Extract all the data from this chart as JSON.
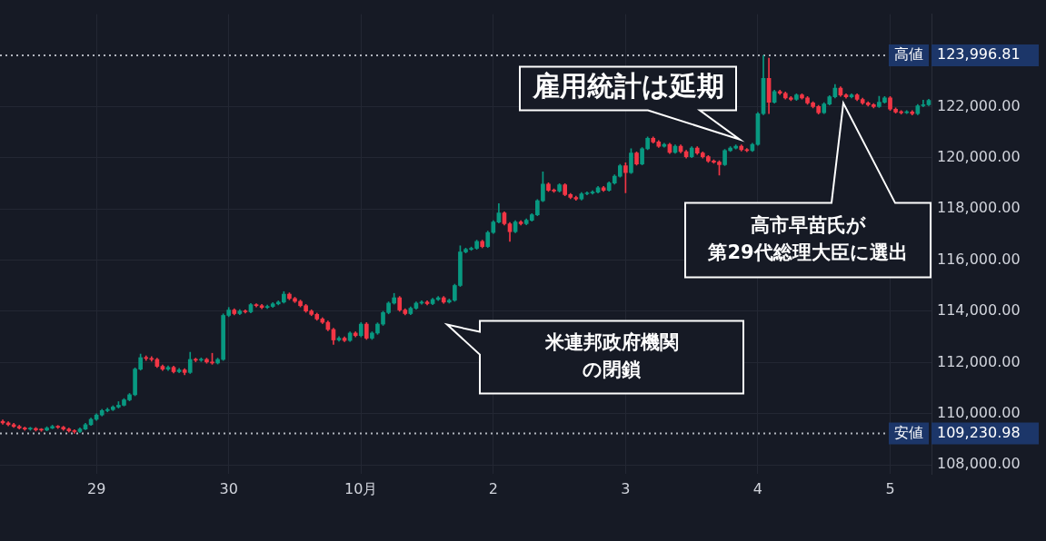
{
  "chart_data": {
    "type": "candlestick",
    "categories": [
      null,
      null,
      null,
      null,
      null,
      null,
      null,
      null,
      null,
      null,
      null,
      null,
      null,
      null,
      null,
      null,
      null,
      "29",
      null,
      null,
      null,
      null,
      null,
      null,
      null,
      null,
      null,
      null,
      null,
      null,
      null,
      null,
      null,
      null,
      null,
      null,
      null,
      null,
      null,
      null,
      null,
      "30",
      null,
      null,
      null,
      null,
      null,
      null,
      null,
      null,
      null,
      null,
      null,
      null,
      null,
      null,
      null,
      null,
      null,
      null,
      null,
      null,
      null,
      null,
      null,
      "10月",
      null,
      null,
      null,
      null,
      null,
      null,
      null,
      null,
      null,
      null,
      null,
      null,
      null,
      null,
      null,
      null,
      null,
      null,
      null,
      null,
      null,
      null,
      null,
      "2",
      null,
      null,
      null,
      null,
      null,
      null,
      null,
      null,
      null,
      null,
      null,
      null,
      null,
      null,
      null,
      null,
      null,
      null,
      null,
      null,
      null,
      null,
      null,
      "3",
      null,
      null,
      null,
      null,
      null,
      null,
      null,
      null,
      null,
      null,
      null,
      null,
      null,
      null,
      null,
      null,
      null,
      null,
      null,
      null,
      null,
      null,
      null,
      "4",
      null,
      null,
      null,
      null,
      null,
      null,
      null,
      null,
      null,
      null,
      null,
      null,
      null,
      null,
      null,
      null,
      null,
      null,
      null,
      null,
      null,
      null,
      null,
      "5",
      null,
      null,
      null,
      null,
      null,
      null,
      null
    ],
    "ohlc": [
      [
        109700,
        109760,
        109590,
        109640
      ],
      [
        109640,
        109690,
        109520,
        109570
      ],
      [
        109570,
        109620,
        109460,
        109500
      ],
      [
        109500,
        109550,
        109400,
        109440
      ],
      [
        109440,
        109480,
        109350,
        109400
      ],
      [
        109400,
        109470,
        109350,
        109420
      ],
      [
        109420,
        109460,
        109320,
        109370
      ],
      [
        109370,
        109420,
        109310,
        109360
      ],
      [
        109360,
        109490,
        109330,
        109440
      ],
      [
        109440,
        109550,
        109410,
        109500
      ],
      [
        109500,
        109540,
        109420,
        109470
      ],
      [
        109470,
        109510,
        109350,
        109400
      ],
      [
        109400,
        109440,
        109280,
        109330
      ],
      [
        109330,
        109380,
        109230.98,
        109300
      ],
      [
        109300,
        109450,
        109260,
        109400
      ],
      [
        109400,
        109620,
        109370,
        109570
      ],
      [
        109570,
        109830,
        109540,
        109780
      ],
      [
        109780,
        110000,
        109740,
        109950
      ],
      [
        109950,
        110170,
        109910,
        110120
      ],
      [
        110120,
        110220,
        110070,
        110160
      ],
      [
        110160,
        110310,
        110120,
        110260
      ],
      [
        110260,
        110470,
        110220,
        110330
      ],
      [
        110330,
        110590,
        110300,
        110540
      ],
      [
        110540,
        110790,
        110500,
        110740
      ],
      [
        110740,
        111790,
        110700,
        111740
      ],
      [
        111740,
        112330,
        111700,
        112190
      ],
      [
        112190,
        112260,
        112080,
        112160
      ],
      [
        112160,
        112230,
        112050,
        112120
      ],
      [
        112120,
        112170,
        111800,
        111850
      ],
      [
        111850,
        111900,
        111690,
        111740
      ],
      [
        111740,
        111870,
        111690,
        111810
      ],
      [
        111810,
        111860,
        111590,
        111640
      ],
      [
        111640,
        111770,
        111600,
        111710
      ],
      [
        111710,
        111760,
        111520,
        111610
      ],
      [
        111610,
        112400,
        111570,
        112120
      ],
      [
        112120,
        112170,
        112030,
        112090
      ],
      [
        112090,
        112180,
        112040,
        112120
      ],
      [
        112120,
        112170,
        111970,
        112020
      ],
      [
        112020,
        112360,
        111930,
        111980
      ],
      [
        111980,
        112170,
        111940,
        112120
      ],
      [
        112120,
        113900,
        112080,
        113840
      ],
      [
        113840,
        114150,
        113790,
        114050
      ],
      [
        114050,
        114100,
        113860,
        113910
      ],
      [
        113910,
        114070,
        113870,
        114010
      ],
      [
        114010,
        114060,
        113930,
        113980
      ],
      [
        113980,
        114310,
        113940,
        114260
      ],
      [
        114260,
        114300,
        114170,
        114220
      ],
      [
        114220,
        114270,
        114100,
        114150
      ],
      [
        114150,
        114240,
        114110,
        114190
      ],
      [
        114190,
        114340,
        114150,
        114290
      ],
      [
        114290,
        114410,
        114250,
        114360
      ],
      [
        114360,
        114770,
        114320,
        114670
      ],
      [
        114670,
        114720,
        114450,
        114500
      ],
      [
        114500,
        114550,
        114340,
        114390
      ],
      [
        114390,
        114440,
        114170,
        114220
      ],
      [
        114220,
        114270,
        113960,
        114010
      ],
      [
        114010,
        114060,
        113830,
        113880
      ],
      [
        113880,
        113930,
        113650,
        113700
      ],
      [
        113700,
        113750,
        113520,
        113570
      ],
      [
        113570,
        113620,
        113240,
        113290
      ],
      [
        113290,
        113340,
        112710,
        112880
      ],
      [
        112880,
        113010,
        112830,
        112950
      ],
      [
        112950,
        113000,
        112810,
        112860
      ],
      [
        112860,
        113200,
        112820,
        113150
      ],
      [
        113150,
        113200,
        113000,
        113050
      ],
      [
        113050,
        113560,
        113000,
        113500
      ],
      [
        113500,
        113560,
        112900,
        112950
      ],
      [
        112950,
        113200,
        112900,
        113150
      ],
      [
        113150,
        113550,
        113100,
        113500
      ],
      [
        113500,
        114000,
        113450,
        113950
      ],
      [
        113950,
        114370,
        113900,
        114320
      ],
      [
        114320,
        114700,
        114280,
        114530
      ],
      [
        114530,
        114580,
        114000,
        114050
      ],
      [
        114050,
        114100,
        113860,
        113910
      ],
      [
        113910,
        114170,
        113870,
        114120
      ],
      [
        114120,
        114370,
        114080,
        114320
      ],
      [
        114320,
        114410,
        114280,
        114360
      ],
      [
        114360,
        114410,
        114250,
        114300
      ],
      [
        114300,
        114510,
        114260,
        114460
      ],
      [
        114460,
        114580,
        114420,
        114530
      ],
      [
        114530,
        114580,
        114310,
        114360
      ],
      [
        114360,
        114480,
        114320,
        114430
      ],
      [
        114430,
        115060,
        114390,
        115010
      ],
      [
        115010,
        116560,
        114970,
        116320
      ],
      [
        116320,
        116470,
        116280,
        116420
      ],
      [
        116420,
        116510,
        116380,
        116460
      ],
      [
        116460,
        116780,
        116420,
        116730
      ],
      [
        116730,
        116780,
        116480,
        116530
      ],
      [
        116530,
        117130,
        116490,
        117080
      ],
      [
        117080,
        117540,
        117040,
        117490
      ],
      [
        117490,
        118210,
        117450,
        117840
      ],
      [
        117840,
        117890,
        117370,
        117420
      ],
      [
        117420,
        117470,
        116730,
        117110
      ],
      [
        117110,
        117540,
        117070,
        117490
      ],
      [
        117490,
        117540,
        117370,
        117420
      ],
      [
        117420,
        117610,
        117380,
        117560
      ],
      [
        117560,
        117820,
        117520,
        117770
      ],
      [
        117770,
        118370,
        117730,
        118320
      ],
      [
        118320,
        119450,
        118280,
        118970
      ],
      [
        118970,
        119020,
        118680,
        118730
      ],
      [
        118730,
        118780,
        118650,
        118700
      ],
      [
        118700,
        118990,
        118660,
        118940
      ],
      [
        118940,
        118990,
        118510,
        118560
      ],
      [
        118560,
        118610,
        118400,
        118450
      ],
      [
        118450,
        118500,
        118340,
        118390
      ],
      [
        118390,
        118640,
        118350,
        118590
      ],
      [
        118590,
        118670,
        118550,
        118620
      ],
      [
        118620,
        118710,
        118580,
        118660
      ],
      [
        118660,
        118880,
        118620,
        118830
      ],
      [
        118830,
        118880,
        118680,
        118730
      ],
      [
        118730,
        119060,
        118690,
        119010
      ],
      [
        119010,
        119330,
        118970,
        119280
      ],
      [
        119280,
        119740,
        119240,
        119690
      ],
      [
        119690,
        119800,
        118630,
        119420
      ],
      [
        119420,
        120350,
        119380,
        120180
      ],
      [
        120180,
        120230,
        119710,
        119760
      ],
      [
        119760,
        120400,
        119720,
        120350
      ],
      [
        120350,
        120810,
        120310,
        120760
      ],
      [
        120760,
        120810,
        120570,
        120620
      ],
      [
        120620,
        120670,
        120400,
        120450
      ],
      [
        120450,
        120570,
        120410,
        120520
      ],
      [
        120520,
        120570,
        120160,
        120210
      ],
      [
        120210,
        120500,
        120170,
        120450
      ],
      [
        120450,
        120500,
        120190,
        120240
      ],
      [
        120240,
        120290,
        119990,
        120040
      ],
      [
        120040,
        120430,
        120000,
        120380
      ],
      [
        120380,
        120430,
        120130,
        120180
      ],
      [
        120180,
        120230,
        119990,
        120040
      ],
      [
        120040,
        120090,
        119820,
        119870
      ],
      [
        119870,
        119920,
        119780,
        119830
      ],
      [
        119830,
        119880,
        119320,
        119730
      ],
      [
        119730,
        120330,
        119690,
        120280
      ],
      [
        120280,
        120430,
        120240,
        120380
      ],
      [
        120380,
        120500,
        120340,
        120450
      ],
      [
        120450,
        120500,
        120260,
        120310
      ],
      [
        120310,
        120360,
        120230,
        120280
      ],
      [
        120280,
        120570,
        120240,
        120520
      ],
      [
        120520,
        121770,
        120480,
        121720
      ],
      [
        121720,
        123996.81,
        121680,
        123100
      ],
      [
        123100,
        123890,
        121720,
        122170
      ],
      [
        122170,
        122640,
        122130,
        122590
      ],
      [
        122590,
        122640,
        122470,
        122520
      ],
      [
        122520,
        122570,
        122290,
        122340
      ],
      [
        122340,
        122390,
        122230,
        122280
      ],
      [
        122280,
        122500,
        122240,
        122450
      ],
      [
        122450,
        122500,
        122290,
        122340
      ],
      [
        122340,
        122390,
        122090,
        122140
      ],
      [
        122140,
        122190,
        121950,
        122000
      ],
      [
        122000,
        122050,
        121710,
        121760
      ],
      [
        121760,
        122150,
        121720,
        122100
      ],
      [
        122100,
        122430,
        122060,
        122380
      ],
      [
        122380,
        122860,
        122340,
        122720
      ],
      [
        122720,
        122770,
        122400,
        122450
      ],
      [
        122450,
        122500,
        122330,
        122380
      ],
      [
        122380,
        122500,
        122340,
        122450
      ],
      [
        122450,
        122500,
        122230,
        122280
      ],
      [
        122280,
        122330,
        122090,
        122140
      ],
      [
        122140,
        122190,
        122020,
        122070
      ],
      [
        122070,
        122120,
        121950,
        122000
      ],
      [
        122000,
        122400,
        121960,
        122170
      ],
      [
        122170,
        122390,
        122130,
        122340
      ],
      [
        122340,
        122390,
        121850,
        121900
      ],
      [
        121900,
        121950,
        121740,
        121790
      ],
      [
        121790,
        121840,
        121710,
        121760
      ],
      [
        121760,
        121840,
        121720,
        121790
      ],
      [
        121790,
        121840,
        121670,
        121720
      ],
      [
        121720,
        122080,
        121680,
        122030
      ],
      [
        122030,
        122250,
        121990,
        122070
      ],
      [
        122070,
        122290,
        122030,
        122240
      ]
    ],
    "colors": [
      "#f23645",
      "#f23645",
      "#f23645",
      "#f23645",
      "#f23645",
      "#089981",
      "#f23645",
      "#f23645",
      "#089981",
      "#089981",
      "#f23645",
      "#f23645",
      "#f23645",
      "#f23645",
      "#089981",
      "#089981",
      "#089981",
      "#089981",
      "#089981",
      "#089981",
      "#089981",
      "#089981",
      "#089981",
      "#089981",
      "#089981",
      "#089981",
      "#f23645",
      "#f23645",
      "#f23645",
      "#f23645",
      "#089981",
      "#f23645",
      "#089981",
      "#f23645",
      "#089981",
      "#f23645",
      "#089981",
      "#f23645",
      "#f23645",
      "#089981",
      "#089981",
      "#089981",
      "#f23645",
      "#089981",
      "#f23645",
      "#089981",
      "#f23645",
      "#f23645",
      "#089981",
      "#089981",
      "#089981",
      "#089981",
      "#f23645",
      "#f23645",
      "#f23645",
      "#f23645",
      "#f23645",
      "#f23645",
      "#f23645",
      "#f23645",
      "#f23645",
      "#089981",
      "#f23645",
      "#089981",
      "#f23645",
      "#089981",
      "#f23645",
      "#089981",
      "#089981",
      "#089981",
      "#089981",
      "#089981",
      "#f23645",
      "#f23645",
      "#089981",
      "#089981",
      "#089981",
      "#f23645",
      "#089981",
      "#089981",
      "#f23645",
      "#089981",
      "#089981",
      "#089981",
      "#089981",
      "#089981",
      "#089981",
      "#f23645",
      "#089981",
      "#089981",
      "#089981",
      "#f23645",
      "#f23645",
      "#089981",
      "#f23645",
      "#089981",
      "#089981",
      "#089981",
      "#089981",
      "#f23645",
      "#f23645",
      "#089981",
      "#f23645",
      "#f23645",
      "#f23645",
      "#089981",
      "#089981",
      "#089981",
      "#089981",
      "#f23645",
      "#089981",
      "#089981",
      "#089981",
      "#f23645",
      "#089981",
      "#f23645",
      "#089981",
      "#089981",
      "#f23645",
      "#f23645",
      "#089981",
      "#f23645",
      "#089981",
      "#f23645",
      "#f23645",
      "#089981",
      "#f23645",
      "#f23645",
      "#f23645",
      "#f23645",
      "#f23645",
      "#089981",
      "#089981",
      "#089981",
      "#f23645",
      "#f23645",
      "#089981",
      "#089981",
      "#089981",
      "#f23645",
      "#089981",
      "#f23645",
      "#f23645",
      "#f23645",
      "#089981",
      "#f23645",
      "#f23645",
      "#f23645",
      "#f23645",
      "#089981",
      "#089981",
      "#089981",
      "#f23645",
      "#f23645",
      "#089981",
      "#f23645",
      "#f23645",
      "#f23645",
      "#f23645",
      "#089981",
      "#089981",
      "#f23645",
      "#f23645",
      "#f23645",
      "#089981",
      "#f23645",
      "#089981",
      "#089981",
      "#089981"
    ],
    "ylim": [
      107650,
      125610
    ],
    "yticks": [
      {
        "value": 108000,
        "label": "108,000.00"
      },
      {
        "value": 110000,
        "label": "110,000.00"
      },
      {
        "value": 112000,
        "label": "112,000.00"
      },
      {
        "value": 114000,
        "label": "114,000.00"
      },
      {
        "value": 116000,
        "label": "116,000.00"
      },
      {
        "value": 118000,
        "label": "118,000.00"
      },
      {
        "value": 120000,
        "label": "120,000.00"
      },
      {
        "value": 122000,
        "label": "122,000.00"
      }
    ],
    "grid": true,
    "ref_lines": [
      {
        "axis": "y",
        "value": 123996.81,
        "label": "高値 123,996.81",
        "color": "#b2b5be",
        "line_style": "dotted"
      },
      {
        "axis": "y",
        "value": 109230.98,
        "label": "安値 109,230.98",
        "color": "#b2b5be",
        "line_style": "dotted"
      }
    ],
    "annotations": [
      "雇用統計は延期",
      "米連邦政府機関の閉鎖",
      "高市早苗氏が第29代総理大臣に選出"
    ]
  }
}
